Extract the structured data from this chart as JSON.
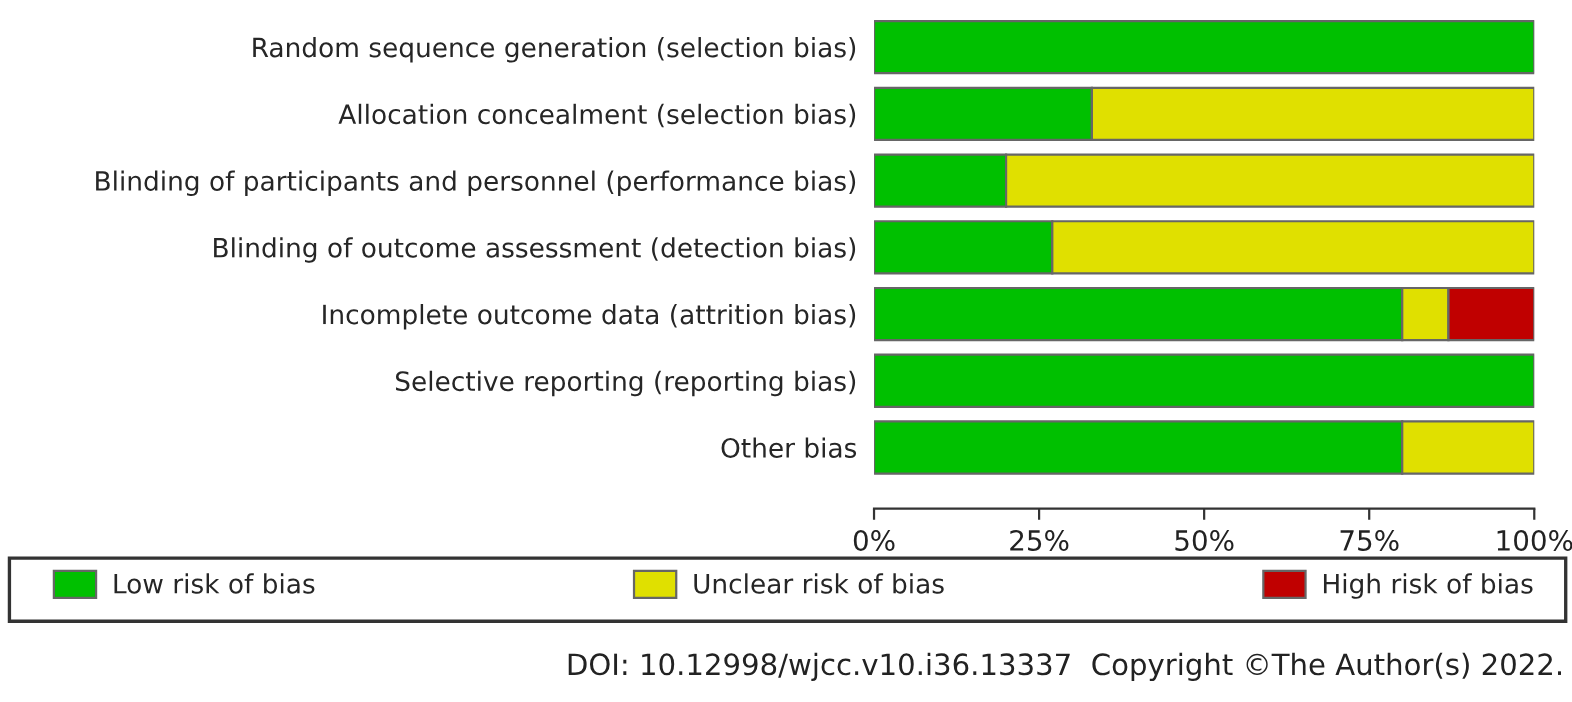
{
  "chart_data": {
    "type": "bar",
    "orientation": "horizontal",
    "stacked": true,
    "categories": [
      "Random sequence generation (selection bias)",
      "Allocation concealment (selection bias)",
      "Blinding of participants and personnel (performance bias)",
      "Blinding of outcome assessment (detection bias)",
      "Incomplete outcome data (attrition bias)",
      "Selective reporting (reporting bias)",
      "Other bias"
    ],
    "series": [
      {
        "name": "Low risk of bias",
        "color": "#00c000",
        "values": [
          100,
          33,
          20,
          27,
          80,
          100,
          80
        ]
      },
      {
        "name": "Unclear risk of bias",
        "color": "#e0e000",
        "values": [
          0,
          67,
          80,
          73,
          7,
          0,
          20
        ]
      },
      {
        "name": "High risk of bias",
        "color": "#c00000",
        "values": [
          0,
          0,
          0,
          0,
          13,
          0,
          0
        ]
      }
    ],
    "xlim": [
      0,
      100
    ],
    "xticks": [
      {
        "value": 0,
        "label": "0%"
      },
      {
        "value": 25,
        "label": "25%"
      },
      {
        "value": 50,
        "label": "50%"
      },
      {
        "value": 75,
        "label": "75%"
      },
      {
        "value": 100,
        "label": "100%"
      }
    ],
    "grid": false,
    "legend": "bottom",
    "annotations": [
      "DOI: 10.12998/wjcc.v10.i36.13337  Copyright ©The Author(s) 2022."
    ]
  }
}
